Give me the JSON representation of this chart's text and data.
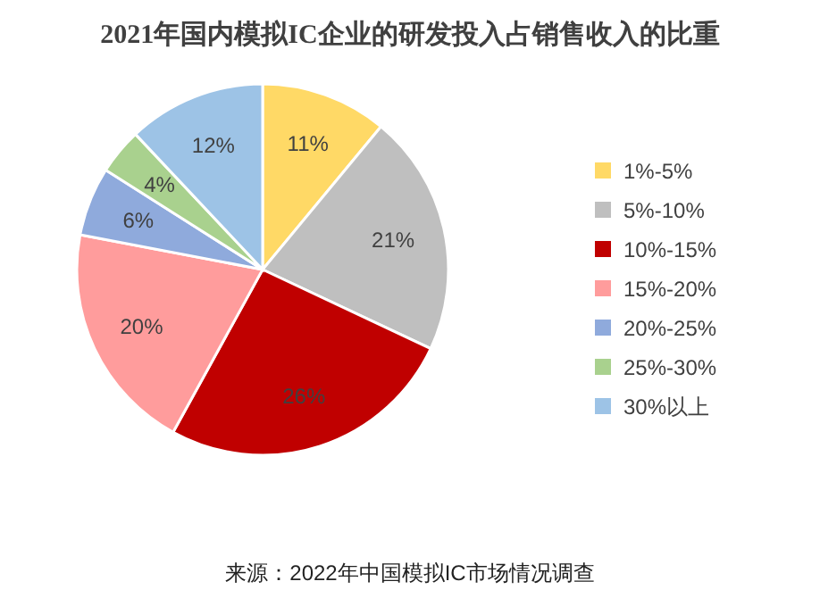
{
  "chart_data": {
    "type": "pie",
    "title": "2021年国内模拟IC企业的研发投入占销售收入的比重",
    "categories": [
      "1%-5%",
      "5%-10%",
      "10%-15%",
      "15%-20%",
      "20%-25%",
      "25%-30%",
      "30%以上"
    ],
    "values": [
      11,
      21,
      26,
      20,
      6,
      4,
      12
    ],
    "colors": [
      "#ffd966",
      "#bfbfbf",
      "#c00000",
      "#ff9c9c",
      "#8faadc",
      "#a9d18e",
      "#9dc3e6"
    ],
    "value_labels": [
      "11%",
      "21%",
      "26%",
      "20%",
      "6%",
      "4%",
      "12%"
    ],
    "legend": "right",
    "annotations": [
      "来源：2022年中国模拟IC市场情况调查"
    ]
  }
}
